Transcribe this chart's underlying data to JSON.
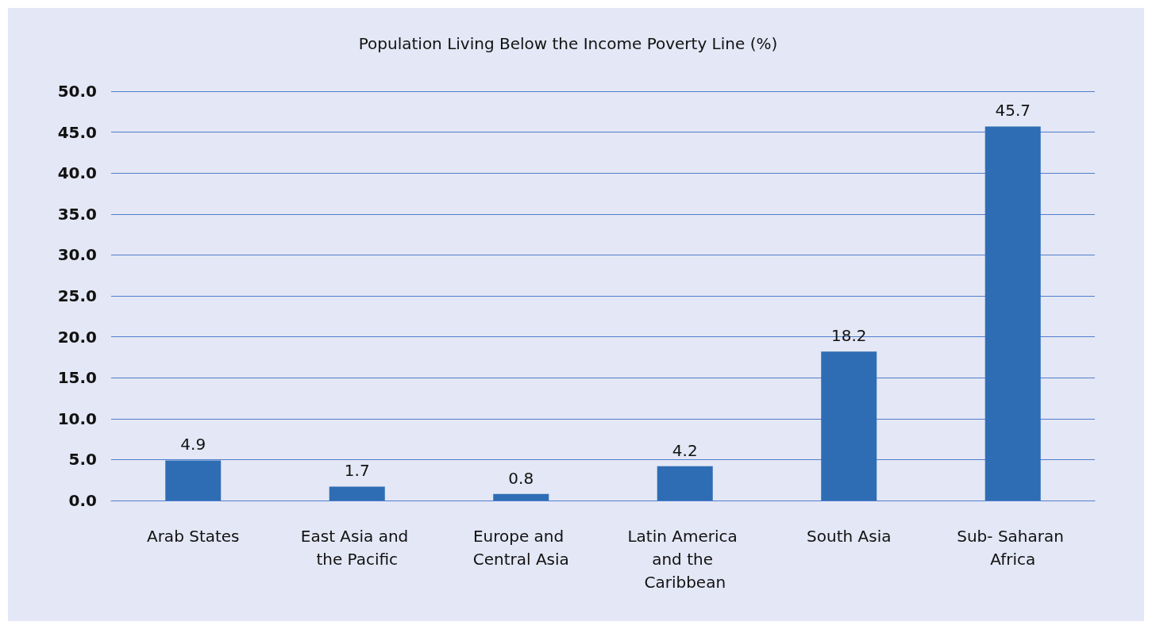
{
  "chart_data": {
    "type": "bar",
    "title": "Population Living Below the Income Poverty Line (%)",
    "categories": [
      "Arab States",
      "East Asia and the Pacific",
      "Europe and Central Asia",
      "Latin America and the Caribbean",
      "South Asia",
      "Sub- Saharan Africa"
    ],
    "values": [
      4.9,
      1.7,
      0.8,
      4.2,
      18.2,
      45.7
    ],
    "color": "#2e6db4",
    "ylim": [
      0,
      50
    ],
    "yticks": [
      {
        "value": 0,
        "label": "0.0"
      },
      {
        "value": 5,
        "label": "5.0"
      },
      {
        "value": 10,
        "label": "10.0"
      },
      {
        "value": 15,
        "label": "15.0"
      },
      {
        "value": 20,
        "label": "20.0"
      },
      {
        "value": 25,
        "label": "25.0"
      },
      {
        "value": 30,
        "label": "30.0"
      },
      {
        "value": 35,
        "label": "35.0"
      },
      {
        "value": 40,
        "label": "40.0"
      },
      {
        "value": 45,
        "label": "45.0"
      },
      {
        "value": 50,
        "label": "50.0"
      }
    ],
    "grid": true,
    "data_labels": true
  }
}
